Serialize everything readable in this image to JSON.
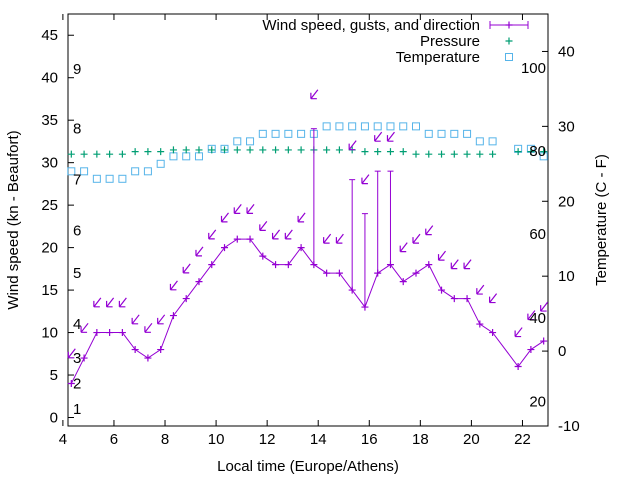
{
  "chart_data": {
    "type": "line",
    "xlabel": "Local time (Europe/Athens)",
    "ylabel": "Wind speed (kn - Beaufort)",
    "y2label": "Temperature (C - F)",
    "xlim": [
      4.2,
      23
    ],
    "ylim": [
      -1,
      47.5
    ],
    "y2lim": [
      -10,
      45
    ],
    "x_ticks": [
      4,
      6,
      8,
      10,
      12,
      14,
      16,
      18,
      20,
      22
    ],
    "y_ticks": [
      0,
      5,
      10,
      15,
      20,
      25,
      30,
      35,
      40,
      45
    ],
    "y2_ticks": [
      -10,
      0,
      10,
      20,
      30,
      40
    ],
    "beaufort_labels": [
      {
        "label": "1",
        "y": 1
      },
      {
        "label": "2",
        "y": 4
      },
      {
        "label": "3",
        "y": 7
      },
      {
        "label": "4",
        "y": 11
      },
      {
        "label": "5",
        "y": 17
      },
      {
        "label": "6",
        "y": 22
      },
      {
        "label": "7",
        "y": 28
      },
      {
        "label": "8",
        "y": 34
      },
      {
        "label": "9",
        "y": 41
      }
    ],
    "fahrenheit_labels": [
      {
        "label": "20",
        "y2": -6.7
      },
      {
        "label": "40",
        "y2": 4.4
      },
      {
        "label": "60",
        "y2": 15.6
      },
      {
        "label": "80",
        "y2": 26.7
      },
      {
        "label": "100",
        "y2": 37.8
      }
    ],
    "legend_position": "top-right",
    "colors": {
      "wind": "#9400d3",
      "pressure": "#009e73",
      "temperature": "#56b4e9",
      "axis": "#000000"
    },
    "series": [
      {
        "name": "Wind speed, gusts, and direction",
        "style": "line-plus-with-gust-bars-and-direction-arrows",
        "x": [
          4.33,
          4.83,
          5.33,
          5.83,
          6.33,
          6.83,
          7.33,
          7.83,
          8.33,
          8.83,
          9.33,
          9.83,
          10.33,
          10.83,
          11.33,
          11.83,
          12.33,
          12.83,
          13.33,
          13.83,
          14.33,
          14.83,
          15.33,
          15.83,
          16.33,
          16.83,
          17.33,
          17.83,
          18.33,
          18.83,
          19.33,
          19.83,
          20.33,
          20.83,
          21.83,
          22.33,
          22.83
        ],
        "values": [
          4,
          7,
          10,
          10,
          10,
          8,
          7,
          8,
          12,
          14,
          16,
          18,
          20,
          21,
          21,
          19,
          18,
          18,
          20,
          18,
          17,
          17,
          15,
          13,
          17,
          18,
          16,
          17,
          18,
          15,
          14,
          14,
          11,
          10,
          6,
          8,
          9
        ],
        "gusts": [
          {
            "x": 13.83,
            "value": 34
          },
          {
            "x": 15.33,
            "value": 28
          },
          {
            "x": 15.83,
            "value": 24
          },
          {
            "x": 16.33,
            "value": 29
          },
          {
            "x": 16.83,
            "value": 29
          }
        ]
      },
      {
        "name": "Pressure",
        "style": "plus",
        "x": [
          4.33,
          4.83,
          5.33,
          5.83,
          6.33,
          6.83,
          7.33,
          7.83,
          8.33,
          8.83,
          9.33,
          9.83,
          10.33,
          10.83,
          11.33,
          11.83,
          12.33,
          12.83,
          13.33,
          13.83,
          14.33,
          14.83,
          15.33,
          15.83,
          16.33,
          16.83,
          17.33,
          17.83,
          18.33,
          18.83,
          19.33,
          19.83,
          20.33,
          20.83,
          21.83,
          22.33,
          22.83
        ],
        "values": [
          31,
          31,
          31,
          31,
          31,
          31.3,
          31.3,
          31.3,
          31.5,
          31.5,
          31.5,
          31.5,
          31.5,
          31.5,
          31.5,
          31.5,
          31.5,
          31.5,
          31.5,
          31.5,
          31.5,
          31.5,
          31.5,
          31.3,
          31.3,
          31.3,
          31.3,
          31,
          31,
          31,
          31,
          31,
          31,
          31,
          31.3,
          31.3,
          31.3
        ]
      },
      {
        "name": "Temperature",
        "style": "square",
        "axis": "y2",
        "x": [
          4.33,
          4.83,
          5.33,
          5.83,
          6.33,
          6.83,
          7.33,
          7.83,
          8.33,
          8.83,
          9.33,
          9.83,
          10.33,
          10.83,
          11.33,
          11.83,
          12.33,
          12.83,
          13.33,
          13.83,
          14.33,
          14.83,
          15.33,
          15.83,
          16.33,
          16.83,
          17.33,
          17.83,
          18.33,
          18.83,
          19.33,
          19.83,
          20.33,
          20.83,
          21.83,
          22.33,
          22.83
        ],
        "values": [
          24,
          24,
          23,
          23,
          23,
          24,
          24,
          25,
          26,
          26,
          26,
          27,
          27,
          28,
          28,
          29,
          29,
          29,
          29,
          29,
          30,
          30,
          30,
          30,
          30,
          30,
          30,
          30,
          29,
          29,
          29,
          29,
          28,
          28,
          27,
          27,
          26
        ]
      }
    ],
    "direction_arrows": {
      "note": "arrows drawn above each wind point pointing down-left",
      "x": [
        4.33,
        4.83,
        5.33,
        5.83,
        6.33,
        6.83,
        7.33,
        7.83,
        8.33,
        8.83,
        9.33,
        9.83,
        10.33,
        10.83,
        11.33,
        11.83,
        12.33,
        12.83,
        13.33,
        13.83,
        14.33,
        14.83,
        15.33,
        15.83,
        16.33,
        16.83,
        17.33,
        17.83,
        18.33,
        18.83,
        19.33,
        19.83,
        20.33,
        20.83,
        21.83,
        22.33,
        22.83
      ],
      "y": [
        7.5,
        10.5,
        13.5,
        13.5,
        13.5,
        11.5,
        10.5,
        11.5,
        15.5,
        17.5,
        19.5,
        21.5,
        23.5,
        24.5,
        24.5,
        22.5,
        21.5,
        21.5,
        23.5,
        38,
        21,
        21,
        32,
        28,
        33,
        33,
        20,
        21,
        22,
        19,
        18,
        18,
        15,
        14,
        10,
        12,
        13
      ]
    }
  }
}
